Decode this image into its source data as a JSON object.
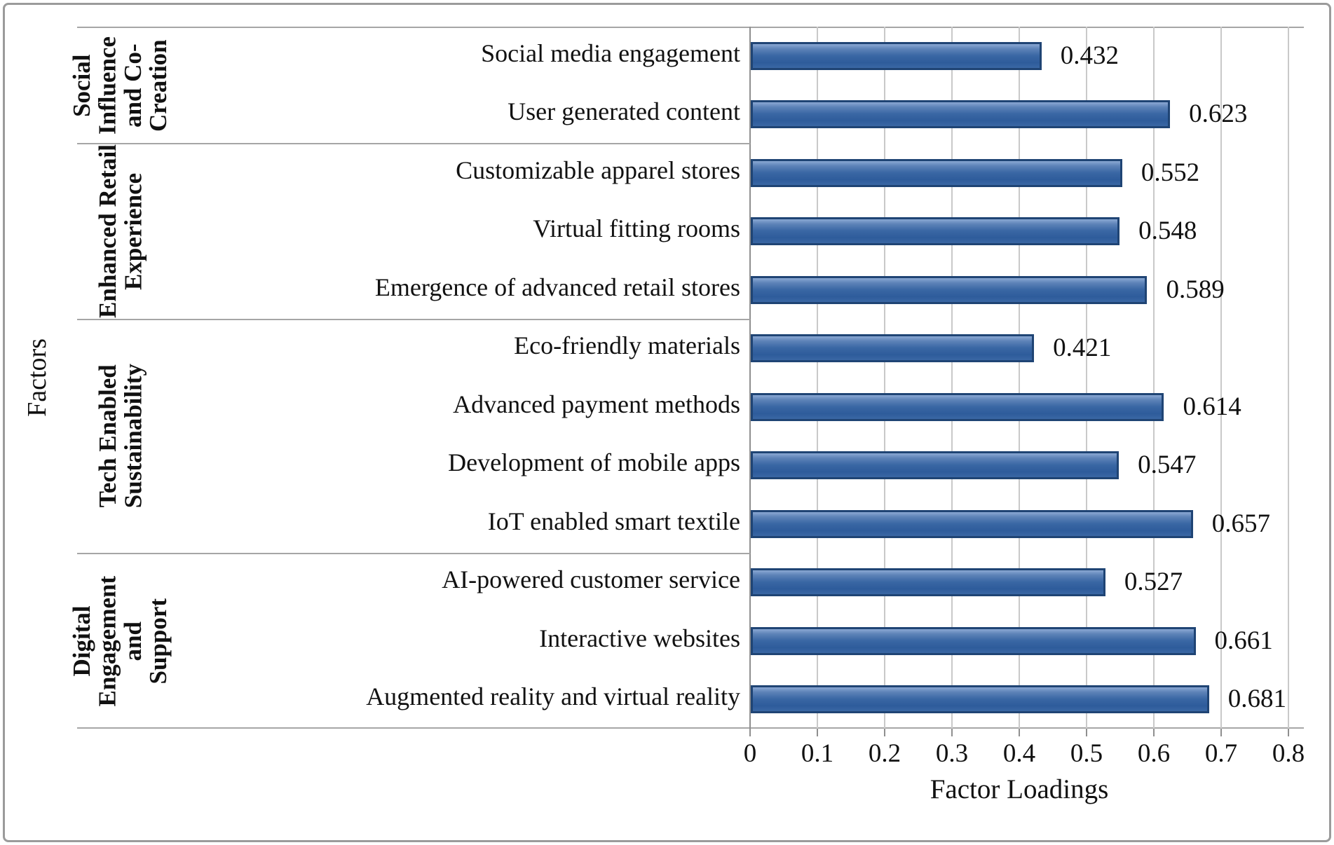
{
  "chart_data": {
    "type": "bar",
    "orientation": "horizontal",
    "title": "",
    "xlabel": "Factor Loadings",
    "ylabel": "Factors",
    "xlim": [
      0,
      0.8
    ],
    "x_ticks": [
      0,
      0.1,
      0.2,
      0.3,
      0.4,
      0.5,
      0.6,
      0.7,
      0.8
    ],
    "x_tick_labels": [
      "0",
      "0.1",
      "0.2",
      "0.3",
      "0.4",
      "0.5",
      "0.6",
      "0.7",
      "0.8"
    ],
    "grid": "vertical",
    "legend": "none",
    "bar_color": "#3a67a4",
    "bar_border_color": "#1f4474",
    "groups": [
      {
        "label": "Social Influence and Co-Creation",
        "label_lines": [
          "Social",
          "Influence",
          "and Co-",
          "Creation"
        ],
        "items": [
          {
            "label": "Social media engagement",
            "value": 0.432,
            "display": "0.432"
          },
          {
            "label": "User generated content",
            "value": 0.623,
            "display": "0.623"
          }
        ]
      },
      {
        "label": "Enhanced Retail Experience",
        "label_lines": [
          "Enhanced Retail",
          "Experience"
        ],
        "items": [
          {
            "label": "Customizable apparel stores",
            "value": 0.552,
            "display": "0.552"
          },
          {
            "label": "Virtual fitting rooms",
            "value": 0.548,
            "display": "0.548"
          },
          {
            "label": "Emergence of advanced retail stores",
            "value": 0.589,
            "display": "0.589"
          }
        ]
      },
      {
        "label": "Tech Enabled Sustainability",
        "label_lines": [
          "Tech Enabled",
          "Sustainability"
        ],
        "items": [
          {
            "label": "Eco-friendly materials",
            "value": 0.421,
            "display": "0.421"
          },
          {
            "label": "Advanced payment methods",
            "value": 0.614,
            "display": "0.614"
          },
          {
            "label": "Development of mobile apps",
            "value": 0.547,
            "display": "0.547"
          },
          {
            "label": "IoT enabled smart textile",
            "value": 0.657,
            "display": "0.657"
          }
        ]
      },
      {
        "label": "Digital Engagement and Support",
        "label_lines": [
          "Digital",
          "Engagement and",
          "Support"
        ],
        "items": [
          {
            "label": "AI-powered customer service",
            "value": 0.527,
            "display": "0.527"
          },
          {
            "label": "Interactive websites",
            "value": 0.661,
            "display": "0.661"
          },
          {
            "label": "Augmented reality and virtual reality",
            "value": 0.681,
            "display": "0.681"
          }
        ]
      }
    ]
  }
}
